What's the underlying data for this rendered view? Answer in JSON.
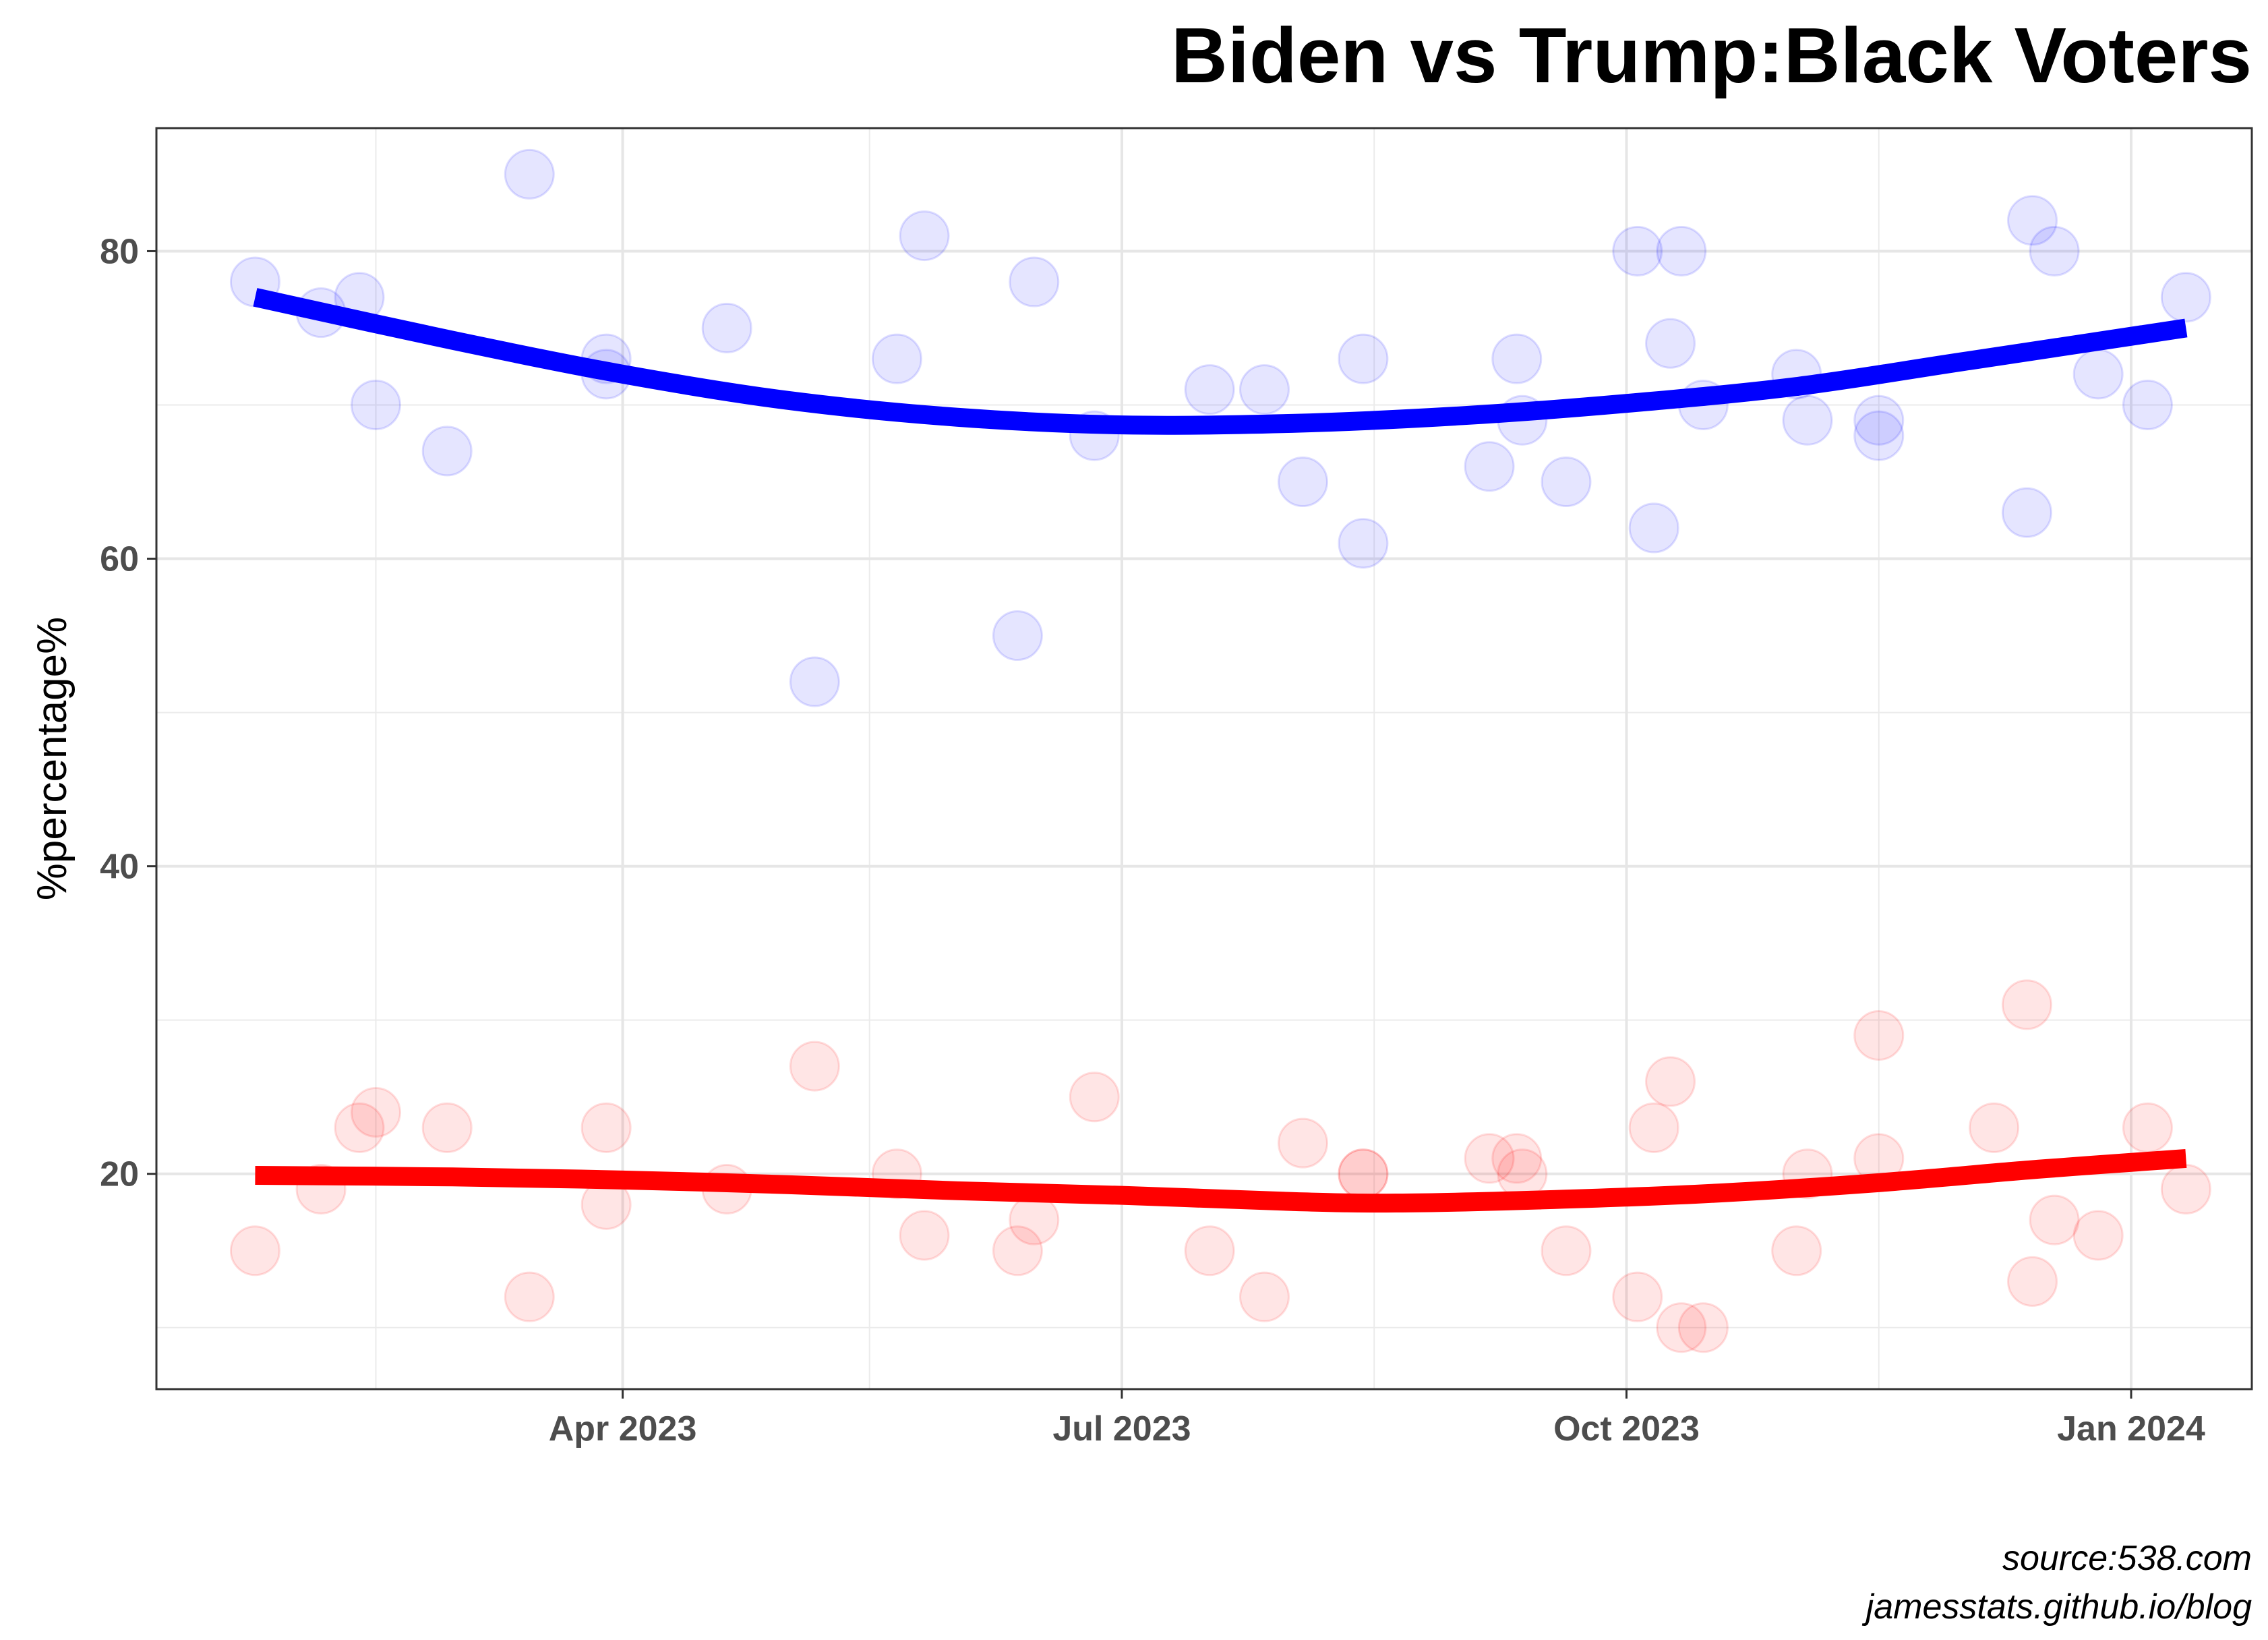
{
  "chart_data": {
    "type": "scatter",
    "title": "Biden vs Trump:Black Voters",
    "xlabel": "",
    "ylabel": "%percentage%",
    "caption": [
      "source:538.com",
      "jamesstats.github.io/blog"
    ],
    "xlim": [
      "2023-01-06",
      "2024-01-23"
    ],
    "ylim": [
      6,
      88
    ],
    "x_ticks": [
      {
        "date": "2023-04-01",
        "label": "Apr 2023"
      },
      {
        "date": "2023-07-01",
        "label": "Jul 2023"
      },
      {
        "date": "2023-10-01",
        "label": "Oct 2023"
      },
      {
        "date": "2024-01-01",
        "label": "Jan 2024"
      }
    ],
    "x_minor_ticks": [
      "2023-02-15",
      "2023-05-16",
      "2023-08-16",
      "2023-11-16"
    ],
    "y_ticks": [
      20,
      40,
      60,
      80
    ],
    "y_minor_ticks": [
      10,
      30,
      50,
      70
    ],
    "grid": true,
    "series": [
      {
        "color": "#0000ff",
        "points": [
          [
            "2023-01-24",
            78
          ],
          [
            "2023-02-05",
            76
          ],
          [
            "2023-02-12",
            77
          ],
          [
            "2023-02-15",
            70
          ],
          [
            "2023-02-28",
            67
          ],
          [
            "2023-03-15",
            85
          ],
          [
            "2023-03-29",
            73
          ],
          [
            "2023-03-29",
            72
          ],
          [
            "2023-04-20",
            75
          ],
          [
            "2023-05-06",
            52
          ],
          [
            "2023-05-21",
            73
          ],
          [
            "2023-05-26",
            81
          ],
          [
            "2023-06-12",
            55
          ],
          [
            "2023-06-15",
            78
          ],
          [
            "2023-06-26",
            68
          ],
          [
            "2023-07-17",
            71
          ],
          [
            "2023-07-27",
            71
          ],
          [
            "2023-08-03",
            65
          ],
          [
            "2023-08-14",
            73
          ],
          [
            "2023-08-14",
            61
          ],
          [
            "2023-09-06",
            66
          ],
          [
            "2023-09-11",
            73
          ],
          [
            "2023-09-12",
            69
          ],
          [
            "2023-09-20",
            65
          ],
          [
            "2023-10-03",
            80
          ],
          [
            "2023-10-06",
            62
          ],
          [
            "2023-10-09",
            74
          ],
          [
            "2023-10-11",
            80
          ],
          [
            "2023-10-15",
            70
          ],
          [
            "2023-11-01",
            72
          ],
          [
            "2023-11-03",
            69
          ],
          [
            "2023-11-16",
            69
          ],
          [
            "2023-11-16",
            68
          ],
          [
            "2023-12-13",
            63
          ],
          [
            "2023-12-14",
            82
          ],
          [
            "2023-12-18",
            80
          ],
          [
            "2023-12-26",
            72
          ],
          [
            "2024-01-04",
            70
          ],
          [
            "2024-01-11",
            77
          ]
        ],
        "trend": [
          [
            "2023-01-24",
            77
          ],
          [
            "2023-03-01",
            74.2
          ],
          [
            "2023-04-01",
            72
          ],
          [
            "2023-05-01",
            70.3
          ],
          [
            "2023-06-01",
            69.2
          ],
          [
            "2023-07-01",
            68.7
          ],
          [
            "2023-08-01",
            68.8
          ],
          [
            "2023-09-01",
            69.3
          ],
          [
            "2023-10-01",
            70.1
          ],
          [
            "2023-11-01",
            71.2
          ],
          [
            "2023-12-01",
            72.8
          ],
          [
            "2024-01-11",
            75
          ]
        ]
      },
      {
        "color": "#ff0000",
        "points": [
          [
            "2023-01-24",
            15
          ],
          [
            "2023-02-05",
            19
          ],
          [
            "2023-02-12",
            23
          ],
          [
            "2023-02-15",
            24
          ],
          [
            "2023-02-28",
            23
          ],
          [
            "2023-03-15",
            12
          ],
          [
            "2023-03-29",
            23
          ],
          [
            "2023-03-29",
            18
          ],
          [
            "2023-04-20",
            19
          ],
          [
            "2023-05-06",
            27
          ],
          [
            "2023-05-21",
            20
          ],
          [
            "2023-05-26",
            16
          ],
          [
            "2023-06-12",
            15
          ],
          [
            "2023-06-15",
            17
          ],
          [
            "2023-06-26",
            25
          ],
          [
            "2023-07-17",
            15
          ],
          [
            "2023-07-27",
            12
          ],
          [
            "2023-08-03",
            22
          ],
          [
            "2023-08-14",
            20
          ],
          [
            "2023-08-14",
            20
          ],
          [
            "2023-09-06",
            21
          ],
          [
            "2023-09-11",
            21
          ],
          [
            "2023-09-12",
            20
          ],
          [
            "2023-09-20",
            15
          ],
          [
            "2023-10-03",
            12
          ],
          [
            "2023-10-06",
            23
          ],
          [
            "2023-10-09",
            26
          ],
          [
            "2023-10-11",
            10
          ],
          [
            "2023-10-15",
            10
          ],
          [
            "2023-11-01",
            15
          ],
          [
            "2023-11-03",
            20
          ],
          [
            "2023-11-16",
            29
          ],
          [
            "2023-11-16",
            21
          ],
          [
            "2023-12-07",
            23
          ],
          [
            "2023-12-13",
            31
          ],
          [
            "2023-12-14",
            13
          ],
          [
            "2023-12-18",
            17
          ],
          [
            "2023-12-26",
            16
          ],
          [
            "2024-01-04",
            23
          ],
          [
            "2024-01-11",
            19
          ]
        ],
        "trend": [
          [
            "2023-01-24",
            19.9
          ],
          [
            "2023-03-01",
            19.8
          ],
          [
            "2023-04-01",
            19.6
          ],
          [
            "2023-05-01",
            19.3
          ],
          [
            "2023-06-01",
            18.9
          ],
          [
            "2023-07-01",
            18.6
          ],
          [
            "2023-08-01",
            18.2
          ],
          [
            "2023-08-20",
            18.1
          ],
          [
            "2023-09-15",
            18.3
          ],
          [
            "2023-10-15",
            18.7
          ],
          [
            "2023-11-15",
            19.4
          ],
          [
            "2023-12-15",
            20.3
          ],
          [
            "2024-01-11",
            21
          ]
        ]
      }
    ]
  }
}
